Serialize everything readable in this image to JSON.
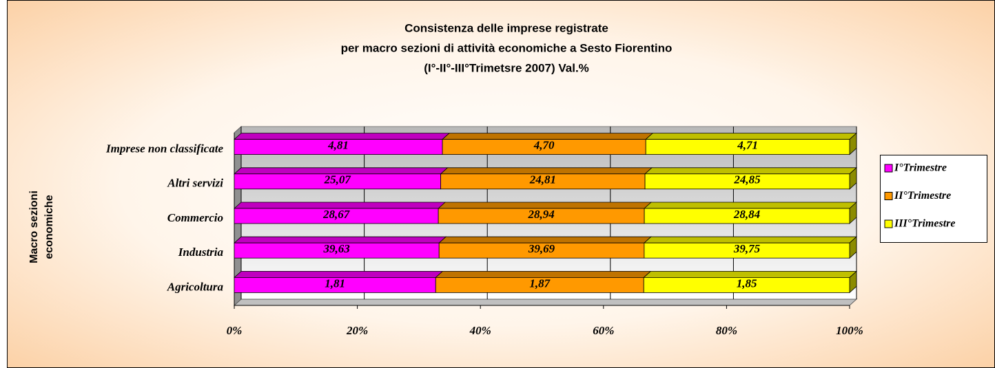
{
  "chart_data": {
    "type": "bar",
    "orientation": "horizontal",
    "stacked": "percent",
    "title": [
      "Consistenza delle imprese registrate",
      "per macro sezioni di attività economiche a Sesto Fiorentino",
      "(I°-II°-III°Trimetsre 2007) Val.%"
    ],
    "y_label": [
      "Macro sezioni",
      "economiche"
    ],
    "categories": [
      "Agricoltura",
      "Industria",
      "Commercio",
      "Altri servizi",
      "Imprese non classificate"
    ],
    "series": [
      {
        "name": "I°Trimestre",
        "color": "#ff00ff",
        "values": [
          1.81,
          39.63,
          28.67,
          25.07,
          4.81
        ],
        "value_labels": [
          "1,81",
          "39,63",
          "28,67",
          "25,07",
          "4,81"
        ]
      },
      {
        "name": "II°Trimestre",
        "color": "#ff9900",
        "values": [
          1.87,
          39.69,
          28.94,
          24.81,
          4.7
        ],
        "value_labels": [
          "1,87",
          "39,69",
          "28,94",
          "24,81",
          "4,70"
        ]
      },
      {
        "name": "III°Trimestre",
        "color": "#ffff00",
        "values": [
          1.85,
          39.75,
          28.84,
          24.85,
          4.71
        ],
        "value_labels": [
          "1,85",
          "39,75",
          "28,84",
          "24,85",
          "4,71"
        ]
      }
    ],
    "xlim": [
      0,
      100
    ],
    "xticks": [
      {
        "value": 0,
        "label": "0%"
      },
      {
        "value": 20,
        "label": "20%"
      },
      {
        "value": 40,
        "label": "40%"
      },
      {
        "value": 60,
        "label": "60%"
      },
      {
        "value": 80,
        "label": "80%"
      },
      {
        "value": 100,
        "label": "100%"
      }
    ],
    "grid": true,
    "legend": "right"
  }
}
